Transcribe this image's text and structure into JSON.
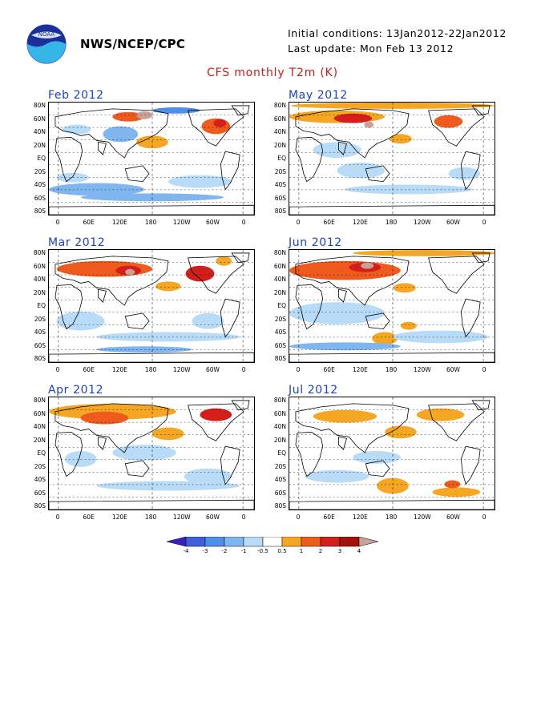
{
  "header": {
    "org": "NWS/NCEP/CPC",
    "initial_conditions": "Initial conditions: 13Jan2012-22Jan2012",
    "last_update": "Last update: Mon Feb 13 2012"
  },
  "title": "CFS monthly T2m (K)",
  "panels": [
    {
      "month": "Feb 2012"
    },
    {
      "month": "May 2012"
    },
    {
      "month": "Mar 2012"
    },
    {
      "month": "Jun 2012"
    },
    {
      "month": "Apr 2012"
    },
    {
      "month": "Jul 2012"
    }
  ],
  "lat_labels": [
    "80N",
    "60N",
    "40N",
    "20N",
    "EQ",
    "20S",
    "40S",
    "60S",
    "80S"
  ],
  "lon_labels": [
    "0",
    "60E",
    "120E",
    "180",
    "120W",
    "60W",
    "0"
  ],
  "colorbar": {
    "ticks": [
      "-4",
      "-3",
      "-2",
      "-1",
      "-0.5",
      "0.5",
      "1",
      "2",
      "3",
      "4"
    ],
    "colors": [
      "#3b1fc4",
      "#3f5fd8",
      "#4f8fe8",
      "#7fb6ef",
      "#b8dbf7",
      "#ffffff",
      "#f5a623",
      "#ef5a1e",
      "#d21f1a",
      "#a5120d",
      "#c9a199"
    ]
  },
  "logo_text": "NOAA"
}
